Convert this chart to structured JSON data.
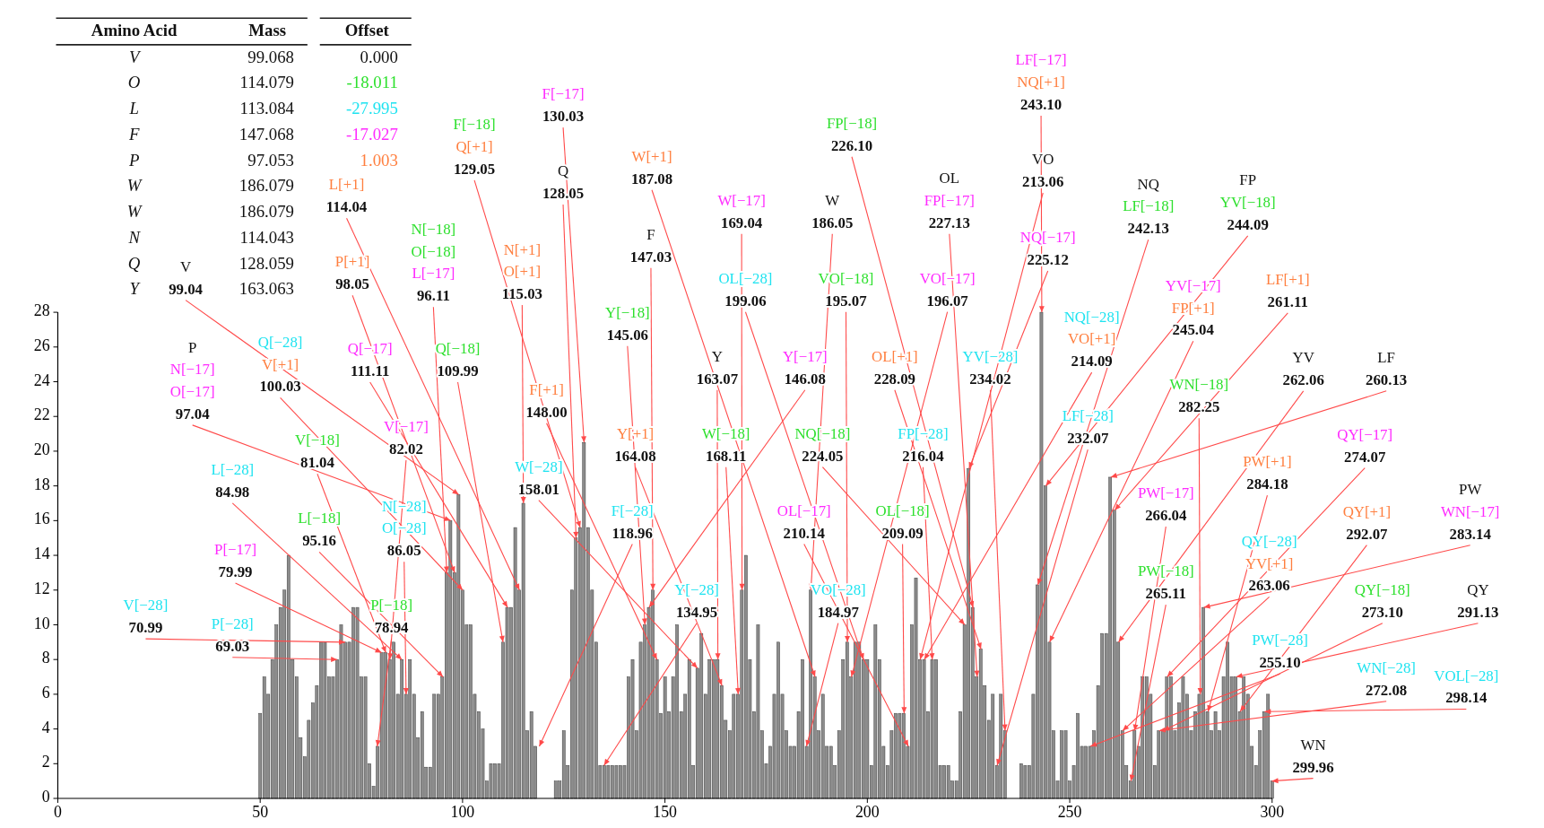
{
  "chart_data": {
    "type": "bar",
    "color": "#8c8c8c",
    "x": [
      50,
      51,
      52,
      53,
      54,
      55,
      56,
      57,
      58,
      59,
      60,
      61,
      62,
      63,
      64,
      65,
      66,
      67,
      68,
      69,
      70,
      71,
      72,
      73,
      74,
      75,
      76,
      77,
      78,
      79,
      80,
      81,
      82,
      83,
      84,
      85,
      86,
      87,
      88,
      89,
      90,
      91,
      92,
      93,
      94,
      95,
      96,
      97,
      98,
      99,
      100,
      101,
      102,
      103,
      104,
      105,
      106,
      107,
      108,
      109,
      110,
      111,
      112,
      113,
      114,
      115,
      116,
      117,
      118,
      123,
      124,
      125,
      126,
      127,
      128,
      129,
      130,
      131,
      132,
      133,
      134,
      135,
      136,
      137,
      138,
      139,
      140,
      141,
      142,
      143,
      144,
      145,
      146,
      147,
      148,
      149,
      150,
      151,
      152,
      153,
      154,
      155,
      156,
      157,
      158,
      159,
      160,
      161,
      162,
      163,
      164,
      165,
      166,
      167,
      168,
      169,
      170,
      171,
      172,
      173,
      174,
      175,
      176,
      177,
      178,
      179,
      180,
      181,
      182,
      183,
      184,
      185,
      186,
      187,
      188,
      189,
      190,
      191,
      192,
      193,
      194,
      195,
      196,
      197,
      198,
      199,
      200,
      201,
      202,
      203,
      204,
      205,
      206,
      207,
      208,
      209,
      210,
      211,
      212,
      213,
      214,
      215,
      216,
      217,
      218,
      219,
      220,
      221,
      222,
      223,
      224,
      225,
      226,
      227,
      228,
      229,
      230,
      231,
      232,
      233,
      234,
      238,
      239,
      240,
      241,
      242,
      243,
      244,
      245,
      246,
      247,
      248,
      249,
      250,
      251,
      252,
      253,
      254,
      255,
      256,
      257,
      258,
      259,
      260,
      261,
      262,
      263,
      264,
      265,
      266,
      267,
      268,
      269,
      270,
      271,
      272,
      273,
      274,
      275,
      276,
      277,
      278,
      279,
      280,
      281,
      282,
      283,
      284,
      285,
      286,
      287,
      288,
      289,
      290,
      291,
      292,
      293,
      294,
      295,
      296,
      297,
      298,
      299,
      300
    ],
    "values": [
      4.9,
      7,
      6,
      8,
      10,
      11,
      12,
      14,
      8,
      7,
      3.5,
      2.4,
      4.5,
      5.5,
      6.5,
      9,
      9,
      7,
      7,
      8,
      10,
      9,
      9,
      11,
      11,
      7,
      7,
      2,
      0.7,
      3,
      8.4,
      8.4,
      8,
      9,
      6,
      8,
      6,
      8,
      6,
      3.5,
      5,
      1.8,
      1.8,
      6,
      6,
      7,
      13,
      16,
      13,
      17.5,
      12,
      10,
      10,
      6,
      5,
      4,
      1,
      2,
      2,
      2,
      9,
      11,
      11,
      15.6,
      12,
      17,
      3.9,
      5,
      3,
      1,
      1,
      3.9,
      1.9,
      12,
      15,
      15.6,
      20.5,
      15.6,
      12,
      9,
      1.9,
      1.9,
      1.9,
      1.9,
      1.9,
      1.9,
      1.9,
      7,
      8,
      3.9,
      9,
      10,
      11,
      12,
      8,
      4.9,
      7,
      5,
      7,
      10,
      5,
      6,
      8,
      1.9,
      7.5,
      9.5,
      6,
      8,
      8,
      8,
      6.5,
      4.5,
      3.9,
      6,
      6,
      12,
      14,
      8,
      5,
      10,
      3.9,
      2,
      3,
      6,
      9,
      6,
      3.9,
      3,
      3,
      5,
      8,
      3,
      12,
      7,
      3.9,
      6,
      3,
      3,
      1.9,
      3.9,
      8,
      9,
      7,
      9,
      9,
      8,
      8,
      1.9,
      10,
      8,
      3,
      1.9,
      3.9,
      4.9,
      4.9,
      4.9,
      3,
      10,
      12.7,
      8,
      8,
      5,
      8,
      8,
      1.9,
      1.9,
      1.9,
      1,
      1,
      5,
      10,
      19,
      11,
      7,
      8.6,
      6.5,
      4.5,
      6,
      1.9,
      6,
      3.9,
      2,
      1.9,
      1.9,
      6,
      12.3,
      28,
      18,
      9,
      3.9,
      1,
      3.9,
      3.9,
      1,
      1.9,
      4.9,
      3,
      3,
      3,
      3.9,
      6.5,
      9.5,
      9.5,
      18.5,
      16.6,
      9,
      3.9,
      1.9,
      1,
      3.9,
      3,
      7,
      7,
      6,
      1.9,
      3.9,
      3.9,
      7,
      7,
      3.9,
      5.5,
      7,
      6,
      3.9,
      5,
      6,
      11,
      5,
      3.9,
      5,
      3.9,
      7,
      9,
      7,
      7,
      5,
      7,
      6,
      3,
      1.9,
      3.9,
      5,
      6,
      1
    ],
    "xlim": [
      0,
      300
    ],
    "ylim": [
      0,
      28
    ],
    "xticks": [
      0,
      50,
      100,
      150,
      200,
      250,
      300
    ],
    "yticks": [
      0,
      2,
      4,
      6,
      8,
      10,
      12,
      14,
      16,
      18,
      20,
      22,
      24,
      26,
      28
    ],
    "annotations": [
      {
        "text": "V\n99.04",
        "x": 99.04,
        "y": 17.5
      },
      {
        "text": "L[+1]\n114.04",
        "x": 114.04,
        "y": 12
      },
      {
        "text": "P[+1]\n98.05",
        "x": 98.05,
        "y": 13
      },
      {
        "text": "N[−18]\nO[−18]\nL[−17]\n96.11",
        "x": 96.11,
        "y": 13
      },
      {
        "text": "F[−18]\nQ[+1]\n129.05",
        "x": 129.05,
        "y": 15.6
      },
      {
        "text": "N[+1]\nO[+1]\n115.03",
        "x": 115.03,
        "y": 17
      },
      {
        "text": "F[−17]\n130.03",
        "x": 130.03,
        "y": 20.5
      },
      {
        "text": "Q\n128.05",
        "x": 128.05,
        "y": 15
      },
      {
        "text": "W[+1]\n187.08",
        "x": 187.08,
        "y": 7
      },
      {
        "text": "F\n147.03",
        "x": 147.03,
        "y": 12
      },
      {
        "text": "W[−17]\n169.04",
        "x": 169.04,
        "y": 12
      },
      {
        "text": "W\n186.05",
        "x": 186.05,
        "y": 12
      },
      {
        "text": "FP[−18]\n226.10",
        "x": 226.1,
        "y": 11
      },
      {
        "text": "OL\nFP[−17]\n227.13",
        "x": 227.13,
        "y": 7
      },
      {
        "text": "LF[−17]\nNQ[+1]\n243.10",
        "x": 243.1,
        "y": 28
      },
      {
        "text": "VO\n213.06",
        "x": 213.06,
        "y": 8
      },
      {
        "text": "NQ\nLF[−18]\n242.13",
        "x": 242.13,
        "y": 12.3
      },
      {
        "text": "FP\nYV[−18]\n244.09",
        "x": 244.09,
        "y": 18
      },
      {
        "text": "NQ[−17]\n225.12",
        "x": 225.12,
        "y": 19
      },
      {
        "text": "OL[−28]\n199.06",
        "x": 199.06,
        "y": 8
      },
      {
        "text": "VO[−18]\n195.07",
        "x": 195.07,
        "y": 9
      },
      {
        "text": "VO[−17]\n196.07",
        "x": 196.07,
        "y": 7
      },
      {
        "text": "YV[−17]\nFP[+1]\n245.04",
        "x": 245.04,
        "y": 9
      },
      {
        "text": "LF[+1]\n261.11",
        "x": 261.11,
        "y": 16.6
      },
      {
        "text": "Y[−18]\n145.06",
        "x": 145.06,
        "y": 10
      },
      {
        "text": "P\nN[−17]\nO[−17]\n97.04",
        "x": 97.04,
        "y": 16
      },
      {
        "text": "Q[−28]\nV[+1]\n100.03",
        "x": 100.03,
        "y": 12
      },
      {
        "text": "Q[−17]\n111.11",
        "x": 111.11,
        "y": 11
      },
      {
        "text": "Q[−18]\n109.99",
        "x": 109.99,
        "y": 9
      },
      {
        "text": "F[+1]\n148.00",
        "x": 148,
        "y": 8
      },
      {
        "text": "Y\n163.07",
        "x": 163.07,
        "y": 8
      },
      {
        "text": "Y[−17]\n146.08",
        "x": 146.08,
        "y": 11
      },
      {
        "text": "OL[+1]\n228.09",
        "x": 228.09,
        "y": 8.6
      },
      {
        "text": "YV[−28]\n234.02",
        "x": 234.02,
        "y": 3.9
      },
      {
        "text": "NQ[−28]\nVO[+1]\n214.09",
        "x": 214.09,
        "y": 8
      },
      {
        "text": "WN[−18]\n282.25",
        "x": 282.25,
        "y": 6
      },
      {
        "text": "YV\n262.06",
        "x": 262.06,
        "y": 9
      },
      {
        "text": "LF\n260.13",
        "x": 260.13,
        "y": 18.5
      },
      {
        "text": "LF[−28]\n232.07",
        "x": 232.07,
        "y": 1.9
      },
      {
        "text": "V[−18]\n81.04",
        "x": 81.04,
        "y": 8.4
      },
      {
        "text": "V[−17]\n82.02",
        "x": 82.02,
        "y": 8
      },
      {
        "text": "Y[+1]\n164.08",
        "x": 164.08,
        "y": 6.5
      },
      {
        "text": "W[−18]\n168.11",
        "x": 168.11,
        "y": 6
      },
      {
        "text": "NQ[−18]\n224.05",
        "x": 224.05,
        "y": 10
      },
      {
        "text": "FP[−28]\n216.04",
        "x": 216.04,
        "y": 8
      },
      {
        "text": "QY[−17]\n274.07",
        "x": 274.07,
        "y": 7
      },
      {
        "text": "L[−28]\n84.98",
        "x": 84.98,
        "y": 8
      },
      {
        "text": "W[−28]\n158.01",
        "x": 158.01,
        "y": 7.5
      },
      {
        "text": "PW[−17]\n266.04",
        "x": 266.04,
        "y": 3.9
      },
      {
        "text": "PW[+1]\n284.18",
        "x": 284.18,
        "y": 5
      },
      {
        "text": "PW\nWN[−17]\n283.14",
        "x": 283.14,
        "y": 11
      },
      {
        "text": "N[−28]\nO[−28]\n86.05",
        "x": 86.05,
        "y": 6
      },
      {
        "text": "L[−18]\n95.16",
        "x": 95.16,
        "y": 7
      },
      {
        "text": "F[−28]\n118.96",
        "x": 118.96,
        "y": 3
      },
      {
        "text": "OL[−17]\n210.14",
        "x": 210.14,
        "y": 3
      },
      {
        "text": "OL[−18]\n209.09",
        "x": 209.09,
        "y": 4.9
      },
      {
        "text": "QY[−28]\nYV[+1]\n263.06",
        "x": 263.06,
        "y": 3.9
      },
      {
        "text": "QY[+1]\n292.07",
        "x": 292.07,
        "y": 5
      },
      {
        "text": "P[−17]\n79.99",
        "x": 79.99,
        "y": 8.4
      },
      {
        "text": "P[−18]\n78.94",
        "x": 78.94,
        "y": 3
      },
      {
        "text": "V[−28]\n70.99",
        "x": 70.99,
        "y": 9
      },
      {
        "text": "P[−28]\n69.03",
        "x": 69.03,
        "y": 8
      },
      {
        "text": "Y[−28]\n134.95",
        "x": 134.95,
        "y": 1.9
      },
      {
        "text": "VO[−28]\n184.97",
        "x": 184.97,
        "y": 3
      },
      {
        "text": "PW[−18]\n265.11",
        "x": 265.11,
        "y": 1
      },
      {
        "text": "QY[−18]\n273.10",
        "x": 273.1,
        "y": 3.9
      },
      {
        "text": "QY\n291.13",
        "x": 291.13,
        "y": 7
      },
      {
        "text": "PW[−28]\n255.10",
        "x": 255.1,
        "y": 3
      },
      {
        "text": "WN[−28]\n272.08",
        "x": 272.08,
        "y": 3.9
      },
      {
        "text": "VOL[−28]\n298.14",
        "x": 298.14,
        "y": 5
      },
      {
        "text": "WN\n299.96",
        "x": 299.96,
        "y": 1
      },
      "Amino Acid",
      "Mass",
      "Offset",
      "V",
      "99.068",
      "0.000",
      "O",
      "114.079",
      "-18.011",
      "L",
      "113.084",
      "-27.995",
      "F",
      "147.068",
      "-17.027",
      "P",
      "97.053",
      "1.003",
      "W",
      "186.079",
      "W",
      "186.079",
      "N",
      "114.043",
      "Q",
      "128.059",
      "Y",
      "163.063"
    ]
  }
}
